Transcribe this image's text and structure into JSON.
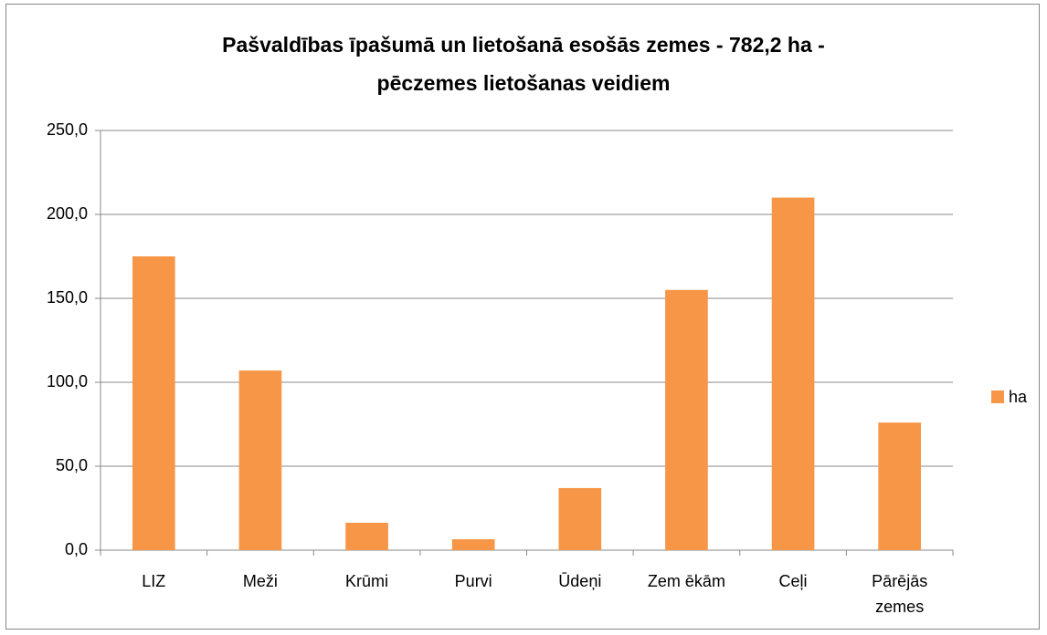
{
  "chart_data": {
    "type": "bar",
    "title": [
      "Pašvaldības īpašumā un lietošanā esošās zemes  - 782,2 ha -",
      "pēczemes lietošanas veidiem"
    ],
    "categories": [
      "LIZ",
      "Meži",
      "Krūmi",
      "Purvi",
      "Ūdeņi",
      "Zem ēkām",
      "Ceļi",
      "Pārējās zemes"
    ],
    "series": [
      {
        "name": "ha",
        "color": "#f79646",
        "values": [
          175,
          107,
          16.3,
          6.5,
          37,
          155,
          210,
          76
        ]
      }
    ],
    "ylim": [
      0,
      250
    ],
    "yticks": [
      {
        "value": 0,
        "label": "0,0"
      },
      {
        "value": 50,
        "label": "50,0"
      },
      {
        "value": 100,
        "label": "100,0"
      },
      {
        "value": 150,
        "label": "150,0"
      },
      {
        "value": 200,
        "label": "200,0"
      },
      {
        "value": 250,
        "label": "250,0"
      }
    ],
    "grid": true,
    "legend": "right"
  }
}
